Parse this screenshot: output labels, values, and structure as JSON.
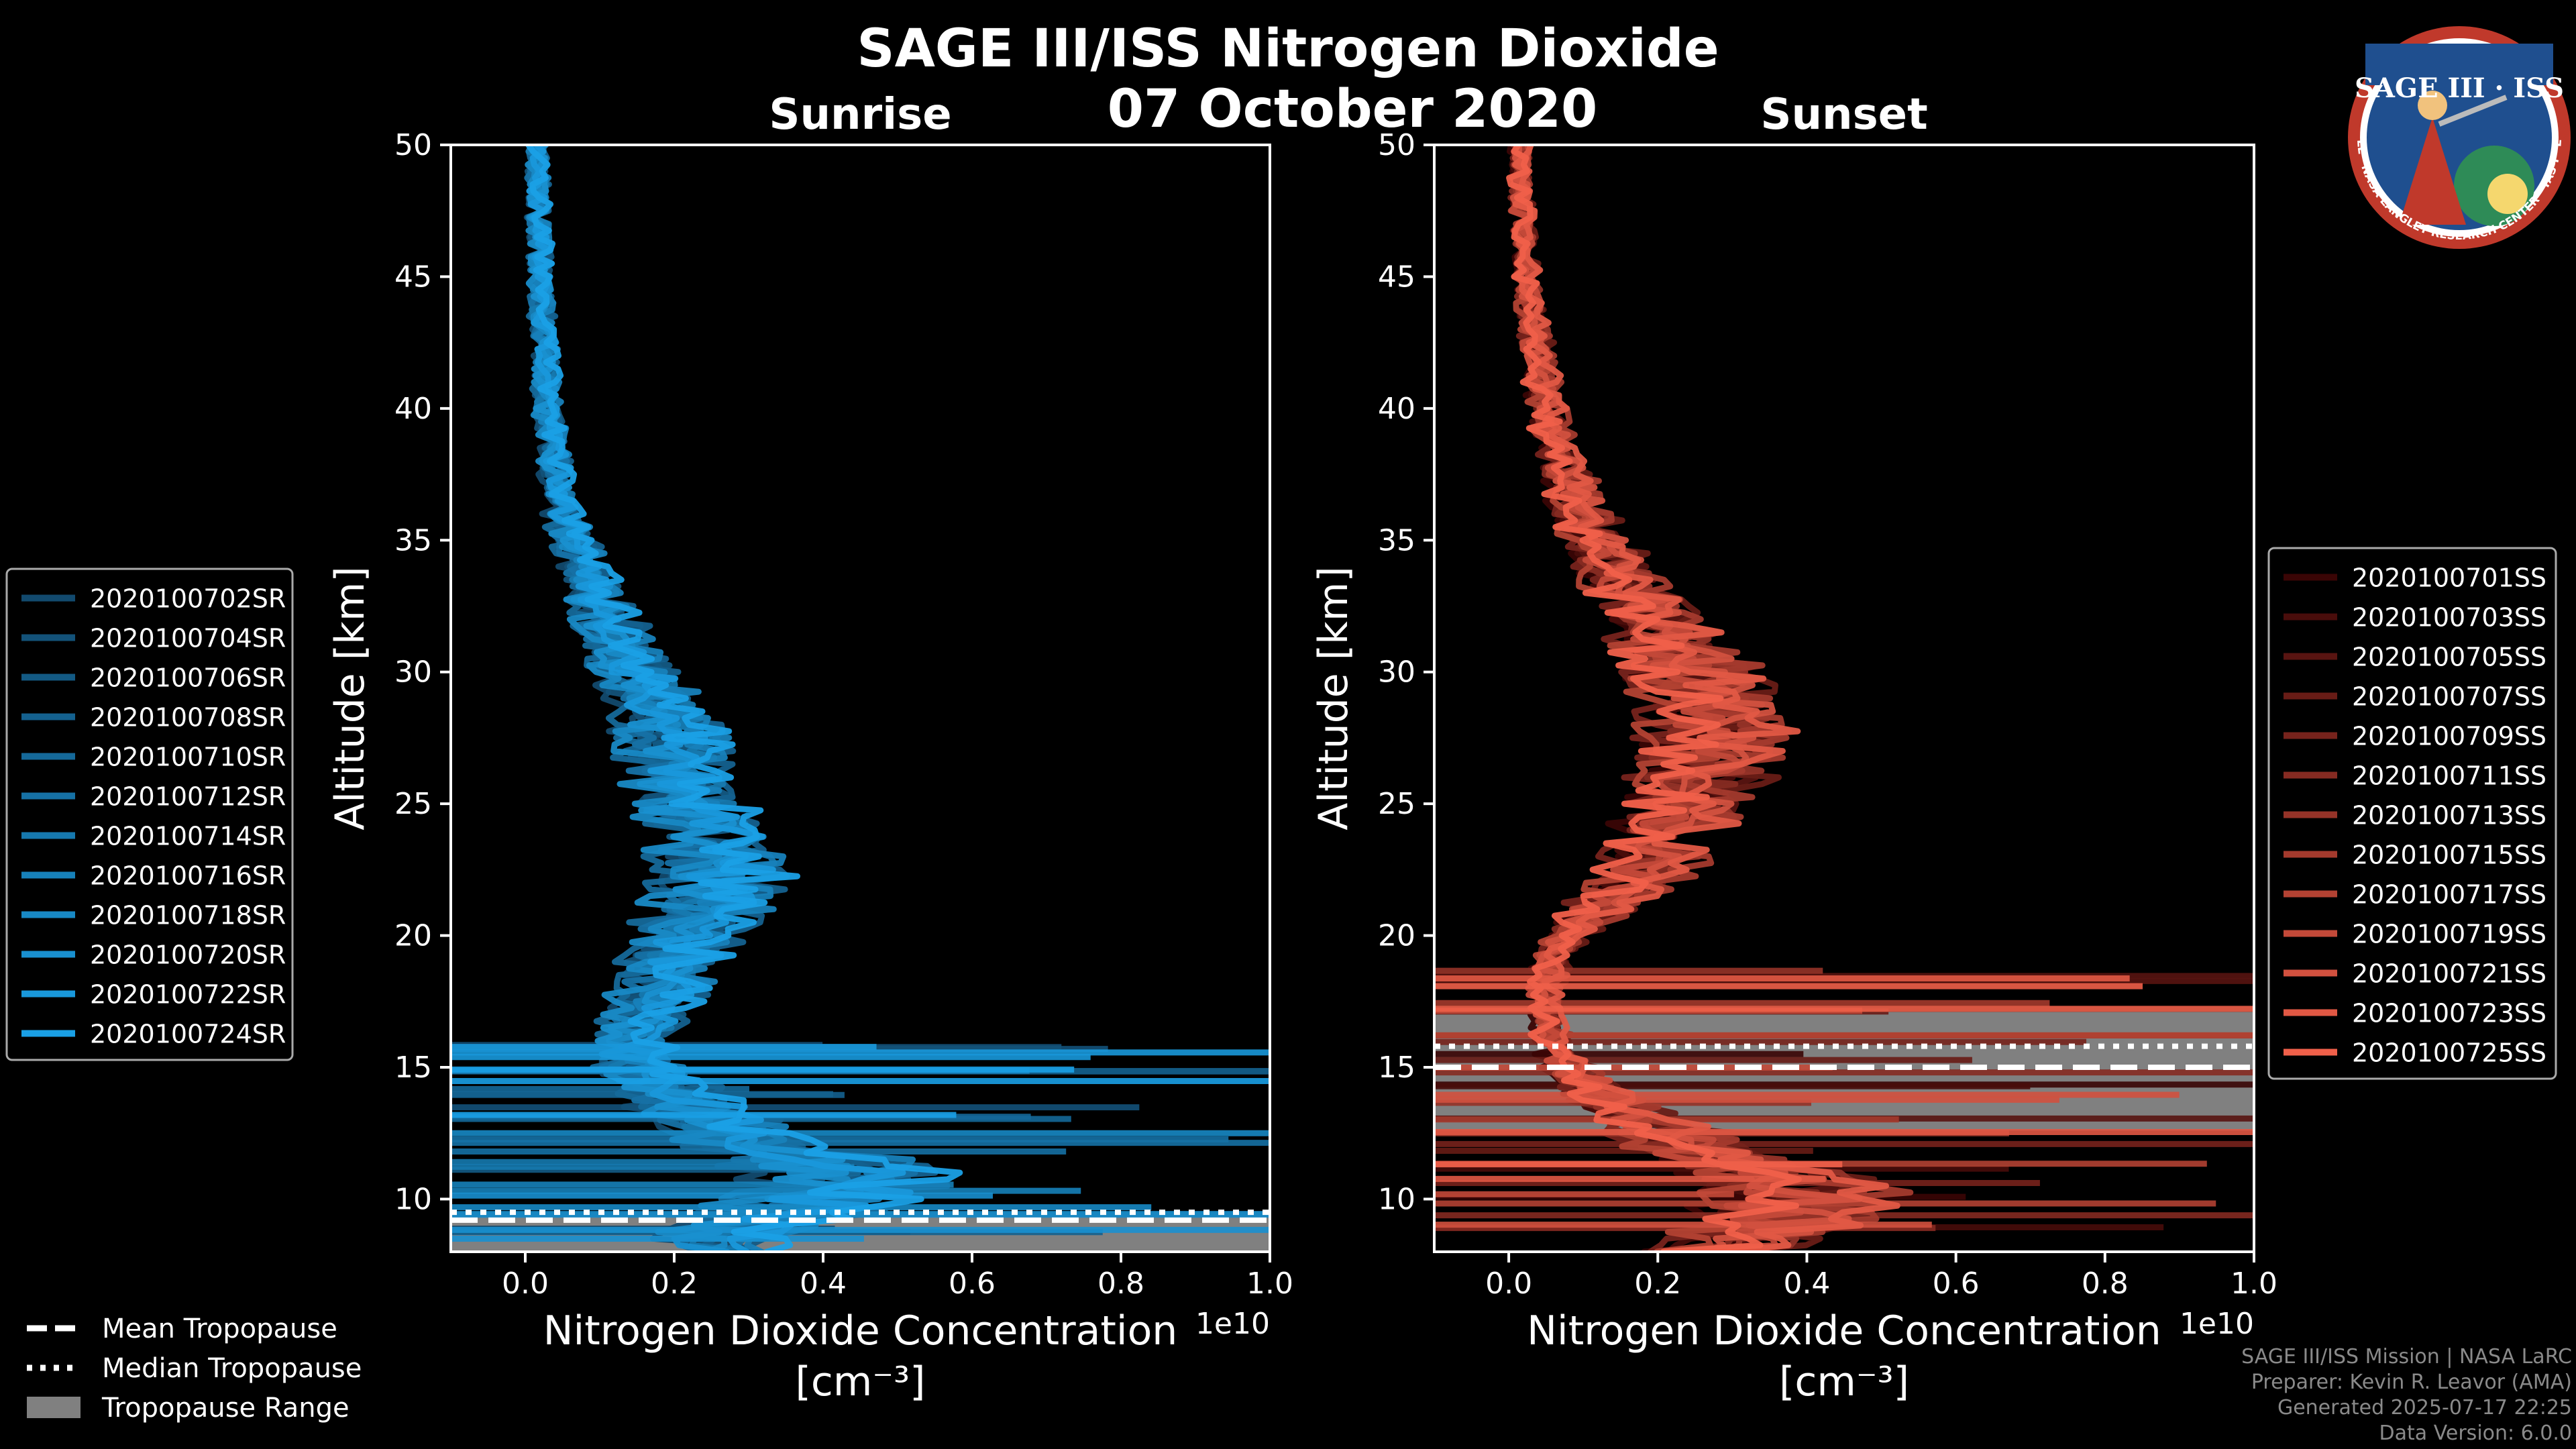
{
  "header": {
    "title": "SAGE III/ISS Nitrogen Dioxide",
    "date": "07 October 2020"
  },
  "logo": {
    "text": "SAGE III · ISS",
    "ring_text": "BALL · NASA LANGLEY RESEARCH CENTER · TAS-I · ESA",
    "colors": {
      "ring": "#c0392b",
      "inner": "#1f4f8f",
      "text": "#ffffff"
    }
  },
  "credits": {
    "line1": "SAGE III/ISS Mission | NASA LaRC",
    "line2": "Preparer: Kevin R. Leavor (AMA)",
    "line3": "Generated 2025-07-17 22:25",
    "line4": "Data Version: 6.0.0"
  },
  "tropopause_legend": {
    "mean": "Mean Tropopause",
    "median": "Median Tropopause",
    "range": "Tropopause Range"
  },
  "chart_data": [
    {
      "type": "line",
      "title": "Sunrise",
      "xlabel": "Nitrogen Dioxide Concentration",
      "xunits": "[cm⁻³]",
      "offset_label": "1e10",
      "ylabel": "Altitude [km]",
      "xlim": [
        -0.1,
        1.0
      ],
      "ylim": [
        8,
        50
      ],
      "x_ticks": [
        0.0,
        0.2,
        0.4,
        0.6,
        0.8,
        1.0
      ],
      "x_tick_labels": [
        "0.0",
        "0.2",
        "0.4",
        "0.6",
        "0.8",
        "1.0"
      ],
      "y_ticks": [
        10,
        15,
        20,
        25,
        30,
        35,
        40,
        45,
        50
      ],
      "y_tick_labels": [
        "10",
        "15",
        "20",
        "25",
        "30",
        "35",
        "40",
        "45",
        "50"
      ],
      "legend_position": "outside-left",
      "tropopause": {
        "mean_km": 9.2,
        "median_km": 9.5,
        "range_km": [
          8.0,
          9.5
        ]
      },
      "colors": {
        "range": "#808080",
        "series_dark": "#124a6e",
        "series_light": "#1aa0e6"
      },
      "series": [
        {
          "name": "2020100702SR"
        },
        {
          "name": "2020100704SR"
        },
        {
          "name": "2020100706SR"
        },
        {
          "name": "2020100708SR"
        },
        {
          "name": "2020100710SR"
        },
        {
          "name": "2020100712SR"
        },
        {
          "name": "2020100714SR"
        },
        {
          "name": "2020100716SR"
        },
        {
          "name": "2020100718SR"
        },
        {
          "name": "2020100720SR"
        },
        {
          "name": "2020100722SR"
        },
        {
          "name": "2020100724SR"
        }
      ],
      "profile": {
        "altitude_km": [
          8,
          9,
          10,
          11,
          12,
          13,
          14,
          15,
          16,
          17,
          18,
          19,
          20,
          21,
          22,
          23,
          24,
          25,
          26,
          27,
          28,
          29,
          30,
          31,
          32,
          33,
          34,
          35,
          36,
          37,
          38,
          39,
          40,
          41,
          42,
          43,
          44,
          45,
          46,
          47,
          48,
          49,
          50
        ],
        "no2_mean_1e10": [
          0.25,
          0.3,
          0.4,
          0.45,
          0.3,
          0.25,
          0.2,
          0.15,
          0.14,
          0.16,
          0.18,
          0.2,
          0.22,
          0.24,
          0.26,
          0.26,
          0.24,
          0.22,
          0.2,
          0.2,
          0.19,
          0.17,
          0.15,
          0.13,
          0.11,
          0.095,
          0.08,
          0.065,
          0.05,
          0.045,
          0.04,
          0.035,
          0.03,
          0.028,
          0.026,
          0.024,
          0.022,
          0.02,
          0.02,
          0.018,
          0.018,
          0.016,
          0.015
        ]
      }
    },
    {
      "type": "line",
      "title": "Sunset",
      "xlabel": "Nitrogen Dioxide Concentration",
      "xunits": "[cm⁻³]",
      "offset_label": "1e10",
      "ylabel": "Altitude [km]",
      "xlim": [
        -0.1,
        1.0
      ],
      "ylim": [
        8,
        50
      ],
      "x_ticks": [
        0.0,
        0.2,
        0.4,
        0.6,
        0.8,
        1.0
      ],
      "x_tick_labels": [
        "0.0",
        "0.2",
        "0.4",
        "0.6",
        "0.8",
        "1.0"
      ],
      "y_ticks": [
        10,
        15,
        20,
        25,
        30,
        35,
        40,
        45,
        50
      ],
      "y_tick_labels": [
        "10",
        "15",
        "20",
        "25",
        "30",
        "35",
        "40",
        "45",
        "50"
      ],
      "legend_position": "outside-right",
      "tropopause": {
        "mean_km": 15.0,
        "median_km": 15.8,
        "range_km": [
          12.6,
          17.1
        ]
      },
      "colors": {
        "range": "#808080",
        "series_dark": "#3a0505",
        "series_light": "#f0604a"
      },
      "series": [
        {
          "name": "2020100701SS"
        },
        {
          "name": "2020100703SS"
        },
        {
          "name": "2020100705SS"
        },
        {
          "name": "2020100707SS"
        },
        {
          "name": "2020100709SS"
        },
        {
          "name": "2020100711SS"
        },
        {
          "name": "2020100713SS"
        },
        {
          "name": "2020100715SS"
        },
        {
          "name": "2020100717SS"
        },
        {
          "name": "2020100719SS"
        },
        {
          "name": "2020100721SS"
        },
        {
          "name": "2020100723SS"
        },
        {
          "name": "2020100725SS"
        }
      ],
      "profile": {
        "altitude_km": [
          8,
          9,
          10,
          11,
          12,
          13,
          14,
          15,
          16,
          17,
          18,
          19,
          20,
          21,
          22,
          23,
          24,
          25,
          26,
          27,
          28,
          29,
          30,
          31,
          32,
          33,
          34,
          35,
          36,
          37,
          38,
          39,
          40,
          41,
          42,
          43,
          44,
          45,
          46,
          47,
          48,
          49,
          50
        ],
        "no2_mean_1e10": [
          0.3,
          0.35,
          0.4,
          0.35,
          0.25,
          0.18,
          0.12,
          0.08,
          0.06,
          0.05,
          0.05,
          0.06,
          0.08,
          0.12,
          0.17,
          0.2,
          0.22,
          0.24,
          0.26,
          0.27,
          0.28,
          0.27,
          0.25,
          0.22,
          0.19,
          0.16,
          0.14,
          0.12,
          0.1,
          0.085,
          0.07,
          0.06,
          0.05,
          0.045,
          0.04,
          0.035,
          0.03,
          0.025,
          0.022,
          0.02,
          0.018,
          0.016,
          0.015
        ]
      }
    }
  ]
}
